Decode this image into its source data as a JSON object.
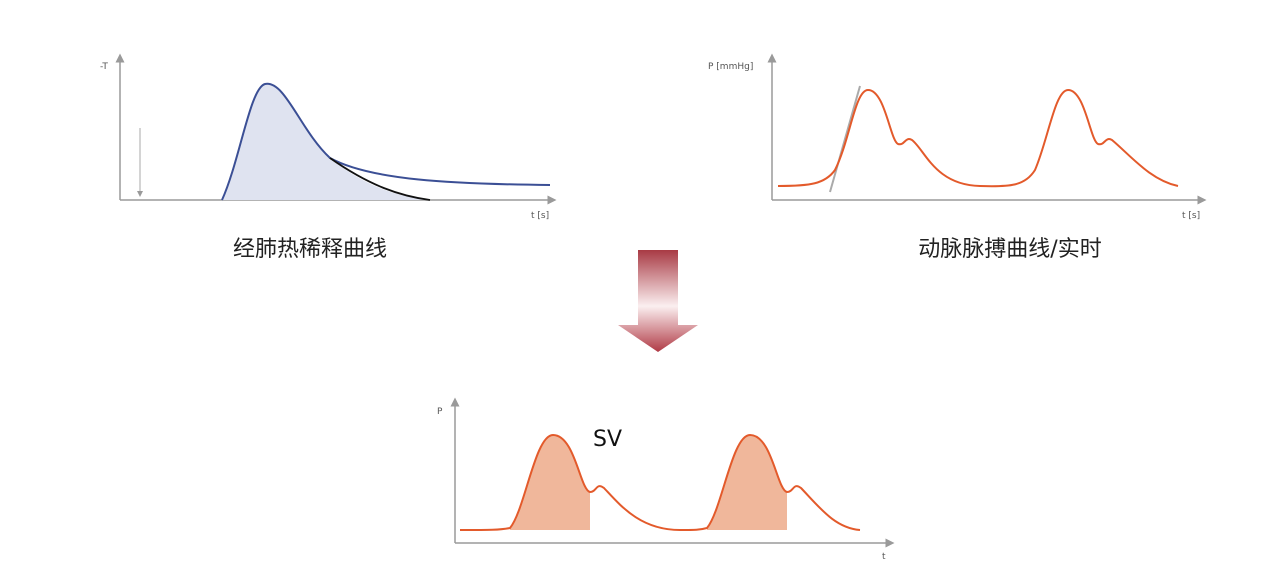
{
  "panels": [
    {
      "y_label": "-T",
      "x_label": "t [s]",
      "caption": "经肺热稀释曲线"
    },
    {
      "y_label": "P [mmHg]",
      "x_label": "t [s]",
      "caption": "动脉脉搏曲线/实时"
    }
  ],
  "result": {
    "y_label": "P",
    "x_label": "t",
    "annotation": "SV"
  }
}
